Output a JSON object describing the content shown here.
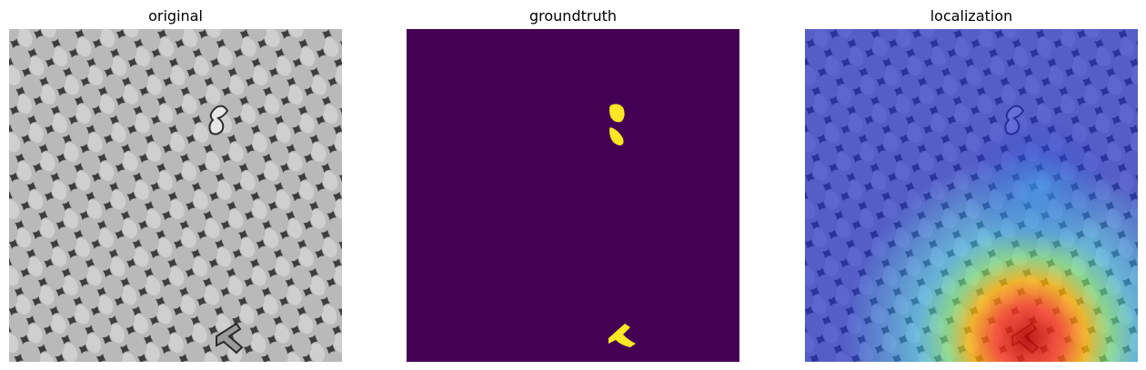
{
  "panels": [
    {
      "title": "original"
    },
    {
      "title": "groundtruth"
    },
    {
      "title": "localization"
    }
  ],
  "colors": {
    "mask_background": "#440154",
    "mask_foreground": "#fde725",
    "texture_light": "#bdbdbd",
    "texture_dark": "#3a3a3a",
    "heat_low": "#2b2bd0",
    "heat_high": "#d11a1a"
  }
}
